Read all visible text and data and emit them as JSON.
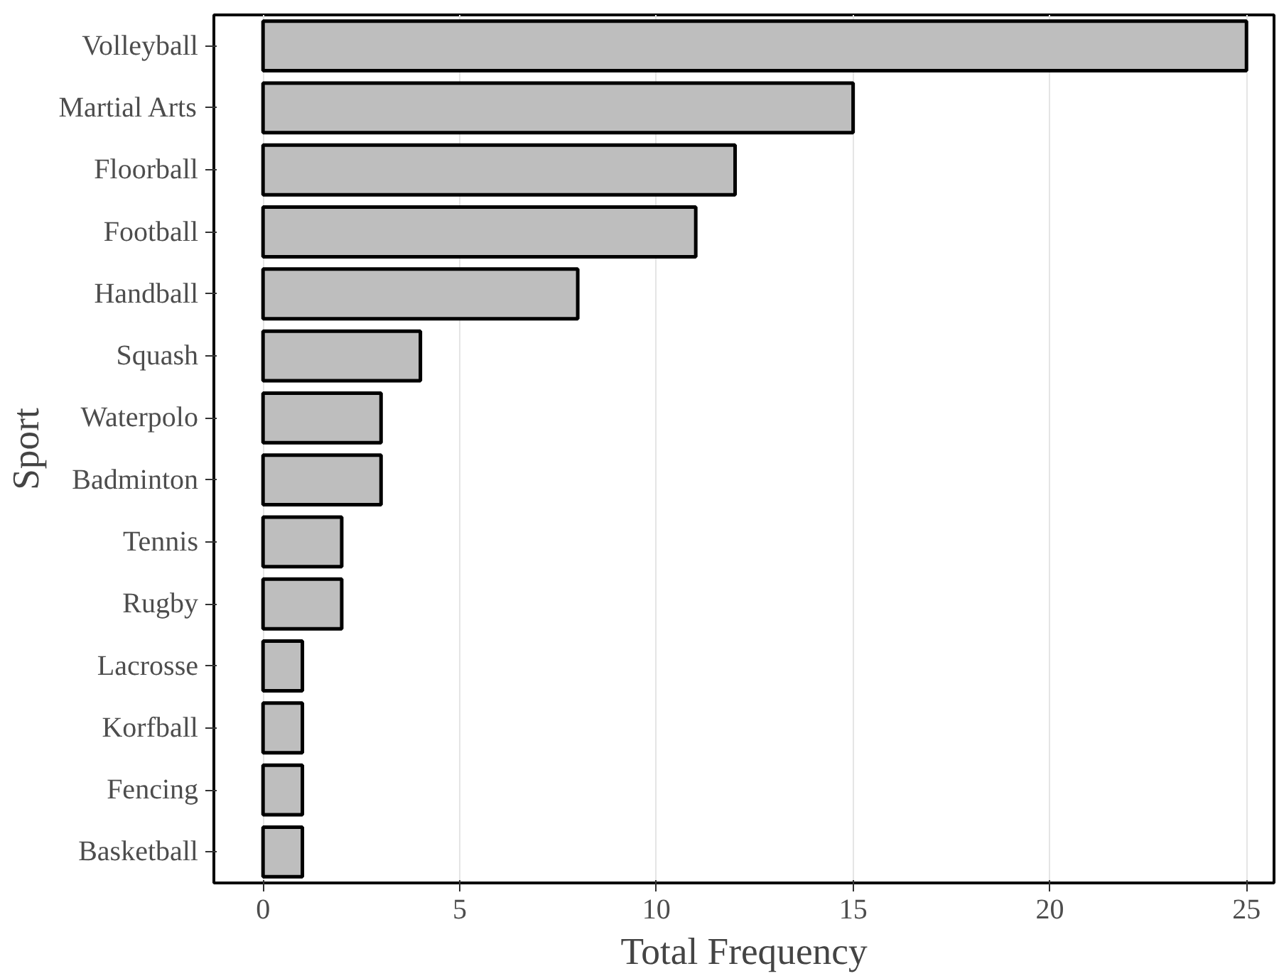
{
  "chart_data": {
    "type": "bar",
    "orientation": "horizontal",
    "xlabel": "Total Frequency",
    "ylabel": "Sport",
    "categories": [
      "Volleyball",
      "Martial Arts",
      "Floorball",
      "Football",
      "Handball",
      "Squash",
      "Waterpolo",
      "Badminton",
      "Tennis",
      "Rugby",
      "Lacrosse",
      "Korfball",
      "Fencing",
      "Basketball"
    ],
    "values": [
      25,
      15,
      12,
      11,
      8,
      4,
      3,
      3,
      2,
      2,
      1,
      1,
      1,
      1
    ],
    "color": "#bebebe",
    "xlim": [
      -1.25,
      25.7
    ],
    "xticks": [
      0,
      5,
      10,
      15,
      20,
      25
    ],
    "grid": "x"
  }
}
